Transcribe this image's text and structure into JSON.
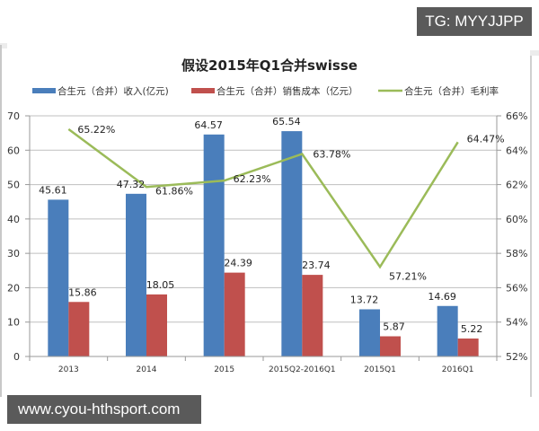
{
  "watermarks": {
    "top_right": "TG: MYYJJPP",
    "bottom_left": "www.cyou-hthsport.com"
  },
  "colors": {
    "revenue": "#4a7ebb",
    "cost": "#c0504d",
    "margin": "#9bbb59",
    "grid": "#bfbfbf",
    "badge_bg": "#5a5a5a"
  },
  "chart_data": {
    "type": "bar",
    "title": "假设2015年Q1合并swisse",
    "categories": [
      "2013",
      "2014",
      "2015",
      "2015Q2-2016Q1",
      "2015Q1",
      "2016Q1"
    ],
    "series": [
      {
        "name": "合生元（合并）收入(亿元)",
        "type": "bar",
        "axis": "left",
        "color": "#4a7ebb",
        "values": [
          45.61,
          47.32,
          64.57,
          65.54,
          13.72,
          14.69
        ],
        "labels": [
          "45.61",
          "47.32",
          "64.57",
          "65.54",
          "13.72",
          "14.69"
        ]
      },
      {
        "name": "合生元（合并）销售成本（亿元）",
        "type": "bar",
        "axis": "left",
        "color": "#c0504d",
        "values": [
          15.86,
          18.05,
          24.39,
          23.74,
          5.87,
          5.22
        ],
        "labels": [
          "15.86",
          "18.05",
          "24.39",
          "23.74",
          "5.87",
          "5.22"
        ]
      },
      {
        "name": "合生元（合并）毛利率",
        "type": "line",
        "axis": "right",
        "color": "#9bbb59",
        "values": [
          65.22,
          61.86,
          62.23,
          63.78,
          57.21,
          64.47
        ],
        "labels": [
          "65.22%",
          "61.86%",
          "62.23%",
          "63.78%",
          "57.21%",
          "64.47%"
        ]
      }
    ],
    "xlabel": "",
    "ylabel": "",
    "ylim": [
      0,
      70
    ],
    "y_ticks": [
      "0",
      "10",
      "20",
      "30",
      "40",
      "50",
      "60",
      "70"
    ],
    "y2lim": [
      52,
      66
    ],
    "y2_ticks": [
      "52%",
      "54%",
      "56%",
      "58%",
      "60%",
      "62%",
      "64%",
      "66%"
    ],
    "grid": true,
    "legend_position": "top"
  }
}
